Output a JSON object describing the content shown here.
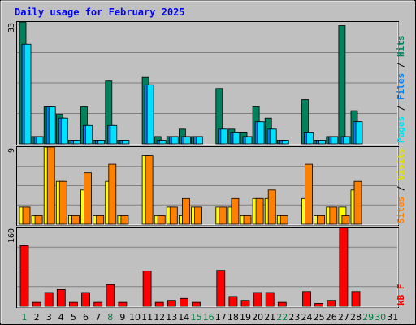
{
  "chart_data": {
    "type": "bar",
    "title": "Daily usage for February 2025",
    "categories": [
      "1",
      "2",
      "3",
      "4",
      "5",
      "6",
      "7",
      "8",
      "9",
      "10",
      "11",
      "12",
      "13",
      "14",
      "15",
      "16",
      "17",
      "18",
      "19",
      "20",
      "21",
      "22",
      "23",
      "24",
      "25",
      "26",
      "27",
      "28",
      "29",
      "30",
      "31"
    ],
    "weekend_days": [
      "1",
      "8",
      "15",
      "16",
      "22",
      "29",
      "30"
    ],
    "panels": [
      {
        "name": "hits-files-pages",
        "y_max_label": "33",
        "ylim": [
          0,
          33
        ],
        "legend": [
          {
            "text": "Pages",
            "color": "#00e0f0"
          },
          {
            "text": " / ",
            "color": "#000000"
          },
          {
            "text": "Files",
            "color": "#0080ff"
          },
          {
            "text": " / ",
            "color": "#000000"
          },
          {
            "text": "Hits",
            "color": "#008060"
          }
        ],
        "series": [
          {
            "name": "Hits",
            "color": "#00805c",
            "values": [
              33,
              2,
              10,
              8,
              1,
              10,
              1,
              17,
              1,
              null,
              18,
              2,
              2,
              4,
              2,
              null,
              15,
              4,
              3,
              10,
              7,
              1,
              null,
              12,
              1,
              2,
              32,
              9,
              null,
              null,
              null
            ]
          },
          {
            "name": "Files",
            "color": "#0080ff",
            "values": [
              27,
              2,
              10,
              7,
              1,
              5,
              1,
              5,
              1,
              null,
              16,
              1,
              2,
              2,
              2,
              null,
              4,
              3,
              2,
              6,
              4,
              1,
              null,
              3,
              1,
              2,
              2,
              6,
              null,
              null,
              null
            ]
          },
          {
            "name": "Pages",
            "color": "#00e0ff",
            "values": [
              27,
              2,
              10,
              7,
              1,
              5,
              1,
              5,
              1,
              null,
              16,
              1,
              2,
              2,
              2,
              null,
              4,
              3,
              2,
              6,
              4,
              1,
              null,
              3,
              1,
              2,
              2,
              6,
              null,
              null,
              null
            ]
          }
        ]
      },
      {
        "name": "visits-sites",
        "y_max_label": "9",
        "ylim": [
          0,
          9
        ],
        "legend": [
          {
            "text": "Sites",
            "color": "#ff8000"
          },
          {
            "text": " / ",
            "color": "#000000"
          },
          {
            "text": "Visits",
            "color": "#e0e000"
          }
        ],
        "series": [
          {
            "name": "Visits",
            "color": "#ffff00",
            "values": [
              2,
              1,
              9,
              5,
              1,
              4,
              1,
              5,
              1,
              null,
              8,
              1,
              2,
              1,
              2,
              null,
              2,
              2,
              1,
              3,
              3,
              1,
              null,
              3,
              1,
              2,
              2,
              4,
              null,
              null,
              null
            ]
          },
          {
            "name": "Sites",
            "color": "#ff8000",
            "values": [
              2,
              1,
              9,
              5,
              1,
              6,
              1,
              7,
              1,
              null,
              8,
              1,
              2,
              3,
              2,
              null,
              2,
              3,
              1,
              3,
              4,
              1,
              null,
              7,
              1,
              2,
              1,
              5,
              null,
              null,
              null
            ]
          }
        ]
      },
      {
        "name": "kbytes",
        "y_max_label": "160",
        "ylim": [
          0,
          160
        ],
        "legend": [
          {
            "text": "kB F",
            "color": "#ff0000"
          }
        ],
        "series": [
          {
            "name": "kB F",
            "color": "#ff0000",
            "values": [
              123,
              8,
              28,
              34,
              8,
              28,
              8,
              44,
              8,
              null,
              72,
              8,
              12,
              16,
              8,
              null,
              73,
              20,
              12,
              28,
              28,
              8,
              null,
              30,
              6,
              12,
              160,
              30,
              null,
              null,
              null
            ]
          }
        ]
      }
    ],
    "colors": {
      "background": "#c0c0c0",
      "plot_background": "#c0c0c0",
      "gridline": "#808080",
      "title": "#0000ff",
      "weekday_label": "#000000",
      "weekend_label": "#008040"
    }
  }
}
